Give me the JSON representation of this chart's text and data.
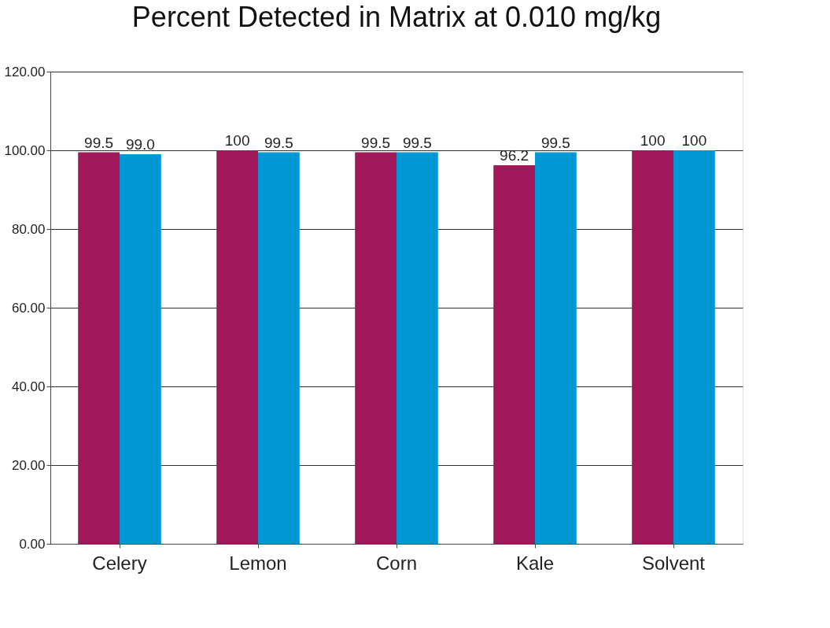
{
  "chart_data": {
    "type": "bar",
    "title": "Percent Detected in Matrix at 0.010 mg/kg",
    "categories": [
      "Celery",
      "Lemon",
      "Corn",
      "Kale",
      "Solvent"
    ],
    "series": [
      {
        "color": "#a0185a",
        "values": [
          99.5,
          100,
          99.5,
          96.2,
          100
        ],
        "value_labels": [
          "99.5",
          "100",
          "99.5",
          "96.2",
          "100"
        ]
      },
      {
        "color": "#0099d6",
        "values": [
          99.0,
          99.5,
          99.5,
          99.5,
          100
        ],
        "value_labels": [
          "99.0",
          "99.5",
          "99.5",
          "99.5",
          "100"
        ]
      }
    ],
    "ylim": [
      0,
      120
    ],
    "yticks": [
      {
        "value": 0,
        "label": "0.00"
      },
      {
        "value": 20,
        "label": "20.00"
      },
      {
        "value": 40,
        "label": "40.00"
      },
      {
        "value": 60,
        "label": "60.00"
      },
      {
        "value": 80,
        "label": "80.00"
      },
      {
        "value": 100,
        "label": "100.00"
      },
      {
        "value": 120,
        "label": "120.00"
      }
    ],
    "grid": "y"
  }
}
